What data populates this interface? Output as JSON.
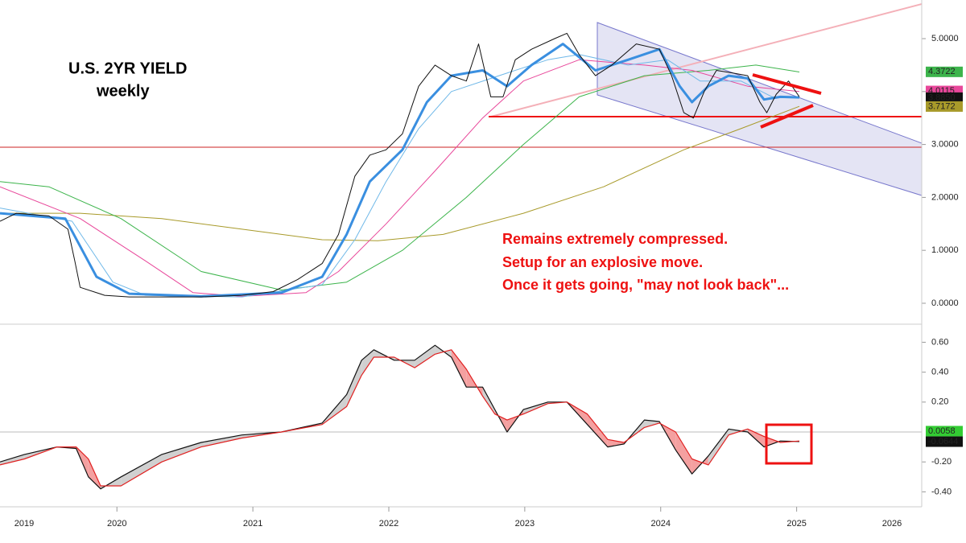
{
  "chart_data": [
    {
      "type": "line",
      "title": "U.S. 2YR YIELD",
      "subtitle": "weekly",
      "annotations": [
        "Remains extremely compressed.",
        "Setup for an explosive move.",
        "Once it gets going, \"may not look back\"..."
      ],
      "xlim": [
        2019.14,
        2025.92
      ],
      "ylim": [
        -0.35,
        5.73
      ],
      "yticks": [
        {
          "value": 0,
          "label": "0.0000"
        },
        {
          "value": 1,
          "label": "1.0000"
        },
        {
          "value": 2,
          "label": "2.0000"
        },
        {
          "value": 3,
          "label": "3.0000"
        },
        {
          "value": 4,
          "label": "4.0000"
        },
        {
          "value": 5,
          "label": "5.0000"
        }
      ],
      "series": [
        {
          "color": "#a89a2a",
          "width": 1,
          "x": [
            2019.14,
            2019.73,
            2020.33,
            2020.92,
            2021.51,
            2021.92,
            2022.4,
            2022.99,
            2023.58,
            2024.17,
            2024.59,
            2025.02
          ],
          "values": [
            1.7,
            1.7,
            1.6,
            1.4,
            1.2,
            1.18,
            1.3,
            1.7,
            2.2,
            2.9,
            3.3,
            3.72
          ]
        },
        {
          "color": "#3cb44b",
          "width": 1,
          "x": [
            2019.14,
            2019.5,
            2020.03,
            2020.62,
            2021.21,
            2021.69,
            2022.1,
            2022.57,
            2022.99,
            2023.4,
            2023.88,
            2024.35,
            2024.7,
            2025.02
          ],
          "values": [
            2.3,
            2.2,
            1.6,
            0.6,
            0.25,
            0.4,
            1.0,
            2.0,
            3.0,
            3.9,
            4.3,
            4.4,
            4.5,
            4.37
          ]
        },
        {
          "color": "#e8479a",
          "width": 1,
          "x": [
            2019.14,
            2019.73,
            2020.21,
            2020.56,
            2020.92,
            2021.39,
            2021.63,
            2021.98,
            2022.34,
            2022.69,
            2022.99,
            2023.4,
            2023.88,
            2024.23,
            2024.64,
            2025.02
          ],
          "values": [
            2.2,
            1.6,
            0.8,
            0.2,
            0.13,
            0.2,
            0.6,
            1.5,
            2.5,
            3.5,
            4.2,
            4.6,
            4.5,
            4.4,
            4.1,
            4.0
          ]
        },
        {
          "color": "#6fb8e8",
          "width": 1,
          "x": [
            2019.14,
            2019.67,
            2019.97,
            2020.21,
            2020.92,
            2021.51,
            2021.75,
            2021.98,
            2022.22,
            2022.46,
            2022.81,
            2023.17,
            2023.4,
            2023.76,
            2024.05,
            2024.29,
            2024.59,
            2024.82,
            2025.02
          ],
          "values": [
            1.8,
            1.55,
            0.4,
            0.15,
            0.12,
            0.35,
            1.2,
            2.3,
            3.3,
            4.0,
            4.3,
            4.6,
            4.7,
            4.5,
            4.6,
            4.2,
            4.2,
            3.9,
            3.9
          ]
        },
        {
          "color": "#3a8fe0",
          "width": 3,
          "x": [
            2019.14,
            2019.62,
            2019.85,
            2020.09,
            2020.62,
            2021.21,
            2021.51,
            2021.69,
            2021.86,
            2022.1,
            2022.28,
            2022.46,
            2022.69,
            2022.87,
            2023.05,
            2023.28,
            2023.52,
            2023.76,
            2023.99,
            2024.14,
            2024.23,
            2024.35,
            2024.5,
            2024.64,
            2024.76,
            2024.88,
            2025.02
          ],
          "values": [
            1.7,
            1.6,
            0.5,
            0.18,
            0.13,
            0.2,
            0.5,
            1.3,
            2.3,
            2.9,
            3.8,
            4.3,
            4.4,
            4.1,
            4.5,
            4.9,
            4.4,
            4.6,
            4.8,
            4.1,
            3.8,
            4.1,
            4.3,
            4.25,
            3.85,
            3.9,
            3.89
          ]
        },
        {
          "color": "#111111",
          "width": 1,
          "x": [
            2019.14,
            2019.26,
            2019.5,
            2019.64,
            2019.69,
            2019.73,
            2019.91,
            2020.09,
            2020.33,
            2020.62,
            2020.92,
            2021.15,
            2021.33,
            2021.51,
            2021.63,
            2021.75,
            2021.86,
            2021.98,
            2022.1,
            2022.22,
            2022.34,
            2022.46,
            2022.57,
            2022.66,
            2022.75,
            2022.84,
            2022.93,
            2023.05,
            2023.22,
            2023.31,
            2023.4,
            2023.52,
            2023.64,
            2023.82,
            2023.99,
            2024.08,
            2024.17,
            2024.24,
            2024.32,
            2024.41,
            2024.53,
            2024.64,
            2024.73,
            2024.78,
            2024.85,
            2024.94,
            2025.02
          ],
          "values": [
            1.55,
            1.7,
            1.65,
            1.4,
            0.8,
            0.3,
            0.15,
            0.12,
            0.12,
            0.12,
            0.15,
            0.22,
            0.45,
            0.75,
            1.3,
            2.4,
            2.8,
            2.9,
            3.2,
            4.1,
            4.5,
            4.3,
            4.2,
            4.9,
            3.9,
            3.9,
            4.6,
            4.8,
            5.0,
            5.1,
            4.7,
            4.3,
            4.5,
            4.9,
            4.8,
            4.3,
            3.6,
            3.5,
            4.0,
            4.4,
            4.35,
            4.3,
            3.8,
            3.6,
            3.95,
            4.2,
            3.9
          ]
        }
      ],
      "last_values": [
        {
          "value": 4.3722,
          "label": "4.3722",
          "color": "#3cb44b"
        },
        {
          "value": 4.0115,
          "label": "4.0115",
          "color": "#e8479a"
        },
        {
          "value": 3.885,
          "label": "3.8850",
          "color": "#111111"
        },
        {
          "value": 3.7172,
          "label": "3.7172",
          "color": "#a89a2a"
        }
      ]
    },
    {
      "type": "line",
      "xlim": [
        2019.14,
        2025.92
      ],
      "ylim": [
        -0.5,
        0.71
      ],
      "xticks": [
        2019,
        2020,
        2021,
        2022,
        2023,
        2024,
        2025,
        2026
      ],
      "yticks": [
        {
          "value": -0.4,
          "label": "-0.40"
        },
        {
          "value": -0.2,
          "label": "-0.20"
        },
        {
          "value": 0.2,
          "label": "0.20"
        },
        {
          "value": 0.4,
          "label": "0.40"
        },
        {
          "value": 0.6,
          "label": "0.60"
        }
      ],
      "x": [
        2019.14,
        2019.32,
        2019.56,
        2019.7,
        2019.79,
        2019.88,
        2020.03,
        2020.33,
        2020.62,
        2020.92,
        2021.21,
        2021.51,
        2021.69,
        2021.8,
        2021.89,
        2022.04,
        2022.19,
        2022.34,
        2022.46,
        2022.57,
        2022.69,
        2022.78,
        2022.87,
        2022.99,
        2023.17,
        2023.31,
        2023.46,
        2023.61,
        2023.73,
        2023.88,
        2023.99,
        2024.11,
        2024.23,
        2024.35,
        2024.5,
        2024.64,
        2024.76,
        2024.88,
        2025.02
      ],
      "series": [
        {
          "color": "#111111",
          "values": [
            -0.2,
            -0.15,
            -0.1,
            -0.11,
            -0.3,
            -0.38,
            -0.3,
            -0.15,
            -0.07,
            -0.02,
            0.0,
            0.06,
            0.25,
            0.48,
            0.55,
            0.48,
            0.48,
            0.58,
            0.5,
            0.3,
            0.3,
            0.15,
            0.0,
            0.15,
            0.2,
            0.2,
            0.05,
            -0.1,
            -0.08,
            0.08,
            0.07,
            -0.12,
            -0.28,
            -0.16,
            0.02,
            0.0,
            -0.1,
            -0.06,
            -0.064
          ]
        },
        {
          "color": "#e02020",
          "values": [
            -0.22,
            -0.18,
            -0.1,
            -0.1,
            -0.18,
            -0.36,
            -0.36,
            -0.2,
            -0.1,
            -0.04,
            0.0,
            0.05,
            0.17,
            0.38,
            0.5,
            0.5,
            0.43,
            0.52,
            0.55,
            0.42,
            0.24,
            0.12,
            0.08,
            0.12,
            0.19,
            0.2,
            0.12,
            -0.05,
            -0.07,
            0.03,
            0.06,
            0.0,
            -0.18,
            -0.22,
            -0.02,
            0.02,
            -0.03,
            -0.07,
            -0.06
          ]
        }
      ],
      "fill_colors": [
        "#d0d0d0",
        "#f4a0a0"
      ],
      "last_values": [
        {
          "value": 0.0058,
          "label": "0.0058",
          "color": "#33cc33"
        },
        {
          "value": -0.0644,
          "label": "-0.0644",
          "color": "#111111"
        }
      ]
    }
  ]
}
